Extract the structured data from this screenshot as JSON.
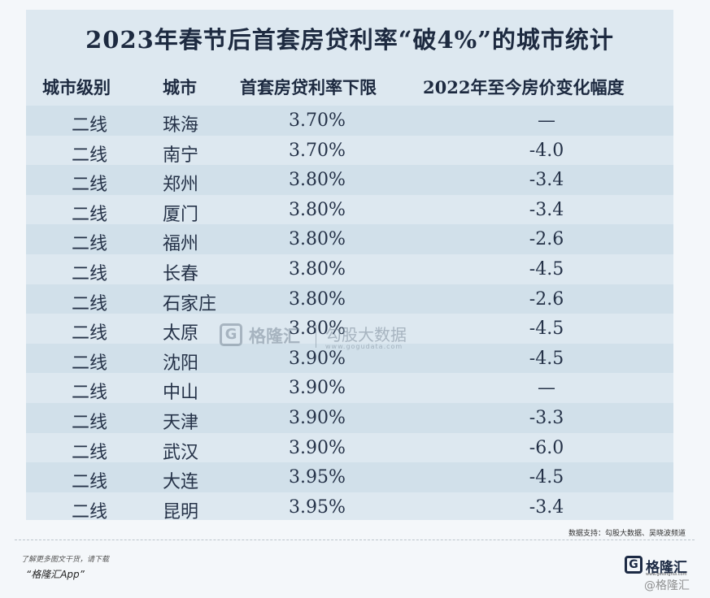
{
  "title": "2023年春节后首套房贷利率“破4%”的城市统计",
  "headers": {
    "level": "城市级别",
    "city": "城市",
    "rate": "首套房贷利率下限",
    "change": "2022年至今房价变化幅度"
  },
  "rows": [
    {
      "level": "二线",
      "city": "珠海",
      "rate": "3.70%",
      "change": "—"
    },
    {
      "level": "二线",
      "city": "南宁",
      "rate": "3.70%",
      "change": "-4.0"
    },
    {
      "level": "二线",
      "city": "郑州",
      "rate": "3.80%",
      "change": "-3.4"
    },
    {
      "level": "二线",
      "city": "厦门",
      "rate": "3.80%",
      "change": "-3.4"
    },
    {
      "level": "二线",
      "city": "福州",
      "rate": "3.80%",
      "change": "-2.6"
    },
    {
      "level": "二线",
      "city": "长春",
      "rate": "3.80%",
      "change": "-4.5"
    },
    {
      "level": "二线",
      "city": "石家庄",
      "rate": "3.80%",
      "change": "-2.6"
    },
    {
      "level": "二线",
      "city": "太原",
      "rate": "3.80%",
      "change": "-4.5"
    },
    {
      "level": "二线",
      "city": "沈阳",
      "rate": "3.90%",
      "change": "-4.5"
    },
    {
      "level": "二线",
      "city": "中山",
      "rate": "3.90%",
      "change": "—"
    },
    {
      "level": "二线",
      "city": "天津",
      "rate": "3.90%",
      "change": "-3.3"
    },
    {
      "level": "二线",
      "city": "武汉",
      "rate": "3.90%",
      "change": "-6.0"
    },
    {
      "level": "二线",
      "city": "大连",
      "rate": "3.95%",
      "change": "-4.5"
    },
    {
      "level": "二线",
      "city": "昆明",
      "rate": "3.95%",
      "change": "-3.4"
    }
  ],
  "watermark": {
    "mark": "G",
    "name": "格隆汇",
    "right": "勾股大数据",
    "url": "www.gogudata.com"
  },
  "source": "数据支持：勾股大数据、吴晓波频道",
  "footer": {
    "line1": "了解更多图文干货，请下载",
    "line2": "“格隆汇App”"
  },
  "logo": {
    "mark": "G",
    "name": "格隆汇",
    "url": "www.gelonghui.com"
  },
  "corner_mark": "@格隆汇"
}
